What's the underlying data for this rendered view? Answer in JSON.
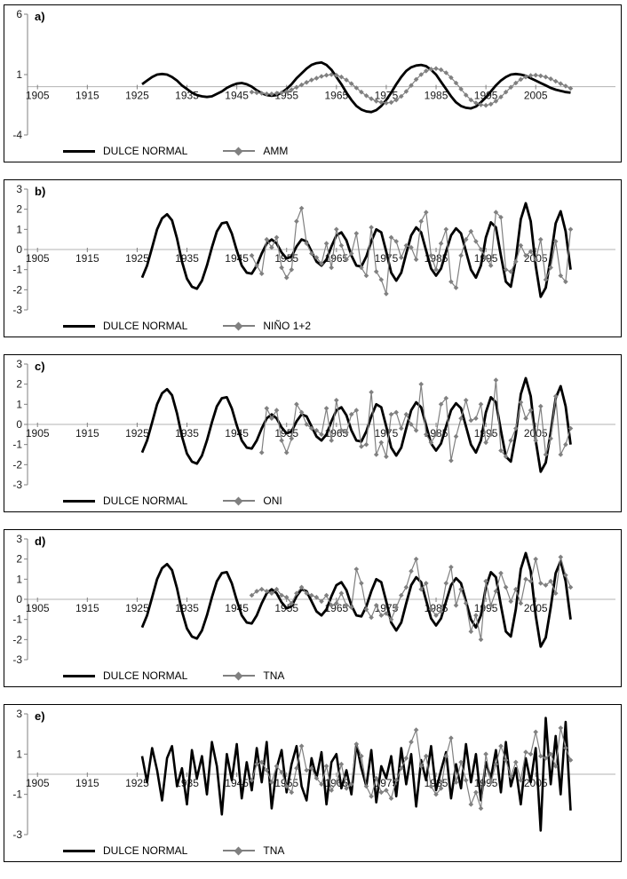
{
  "page": {
    "background": "#ffffff",
    "axis_color": "#808080",
    "zero_line_color": "#b3b3b3"
  },
  "chart_data": [
    {
      "type": "line",
      "panel_label": "a)",
      "x_domain": [
        1903,
        2021
      ],
      "x_ticks": [
        1905,
        1915,
        1925,
        1935,
        1945,
        1955,
        1965,
        1975,
        1985,
        1995,
        2005
      ],
      "y_domain": [
        -4,
        6
      ],
      "y_ticks": [
        6,
        1,
        -4
      ],
      "grid": "zero-line-only",
      "legend_position": "bottom-left-inside",
      "series": [
        {
          "name": "DULCE NORMAL",
          "color": "#000000",
          "width": 2.8,
          "marker": "none",
          "start_year": 1926,
          "values": [
            0.2,
            0.5,
            0.8,
            1.0,
            1.05,
            1.0,
            0.8,
            0.5,
            0.1,
            -0.2,
            -0.5,
            -0.7,
            -0.8,
            -0.85,
            -0.8,
            -0.6,
            -0.4,
            -0.1,
            0.1,
            0.25,
            0.3,
            0.2,
            0.0,
            -0.3,
            -0.55,
            -0.7,
            -0.75,
            -0.7,
            -0.5,
            -0.2,
            0.2,
            0.7,
            1.1,
            1.5,
            1.8,
            1.95,
            2.0,
            1.8,
            1.4,
            0.8,
            0.2,
            -0.5,
            -1.1,
            -1.6,
            -1.9,
            -2.05,
            -2.1,
            -1.95,
            -1.6,
            -1.1,
            -0.5,
            0.2,
            0.8,
            1.3,
            1.6,
            1.75,
            1.8,
            1.7,
            1.4,
            1.0,
            0.4,
            -0.2,
            -0.8,
            -1.3,
            -1.6,
            -1.75,
            -1.8,
            -1.65,
            -1.3,
            -0.9,
            -0.4,
            0.1,
            0.5,
            0.8,
            1.0,
            1.05,
            1.0,
            0.9,
            0.7,
            0.5,
            0.3,
            0.1,
            -0.1,
            -0.25,
            -0.35,
            -0.45,
            -0.5
          ]
        },
        {
          "name": "AMM",
          "color": "#808080",
          "width": 1.2,
          "marker": "diamond",
          "start_year": 1948,
          "values": [
            -0.45,
            -0.5,
            -0.55,
            -0.6,
            -0.6,
            -0.55,
            -0.5,
            -0.4,
            -0.25,
            -0.05,
            0.15,
            0.35,
            0.55,
            0.7,
            0.85,
            0.95,
            1.0,
            0.95,
            0.8,
            0.55,
            0.25,
            -0.1,
            -0.45,
            -0.75,
            -1.0,
            -1.2,
            -1.3,
            -1.35,
            -1.3,
            -1.1,
            -0.8,
            -0.4,
            0.1,
            0.6,
            1.0,
            1.3,
            1.45,
            1.5,
            1.4,
            1.15,
            0.75,
            0.3,
            -0.2,
            -0.7,
            -1.1,
            -1.35,
            -1.5,
            -1.55,
            -1.45,
            -1.2,
            -0.85,
            -0.45,
            -0.05,
            0.3,
            0.6,
            0.8,
            0.92,
            0.95,
            0.9,
            0.8,
            0.65,
            0.45,
            0.25,
            0.05,
            -0.15
          ]
        }
      ]
    },
    {
      "type": "line",
      "panel_label": "b)",
      "x_domain": [
        1903,
        2021
      ],
      "x_ticks": [
        1905,
        1915,
        1925,
        1935,
        1945,
        1955,
        1965,
        1975,
        1985,
        1995,
        2005
      ],
      "y_domain": [
        -3,
        3
      ],
      "y_ticks": [
        3,
        2,
        1,
        0,
        -1,
        -2,
        -3
      ],
      "grid": "zero-line-only",
      "legend_position": "bottom-left-inside",
      "series": [
        {
          "name": "DULCE NORMAL",
          "color": "#000000",
          "width": 2.8,
          "marker": "none",
          "start_year": 1926,
          "values": [
            -1.4,
            -0.8,
            0.1,
            1.0,
            1.55,
            1.75,
            1.45,
            0.55,
            -0.6,
            -1.45,
            -1.85,
            -1.95,
            -1.55,
            -0.8,
            0.1,
            0.9,
            1.3,
            1.35,
            0.8,
            -0.05,
            -0.8,
            -1.15,
            -1.2,
            -0.8,
            -0.2,
            0.3,
            0.5,
            0.3,
            -0.15,
            -0.45,
            -0.35,
            0.15,
            0.5,
            0.4,
            -0.1,
            -0.6,
            -0.8,
            -0.5,
            0.15,
            0.7,
            0.85,
            0.45,
            -0.3,
            -0.8,
            -0.85,
            -0.35,
            0.4,
            1.0,
            0.85,
            -0.1,
            -1.15,
            -1.55,
            -1.15,
            -0.2,
            0.7,
            1.1,
            0.85,
            -0.05,
            -0.95,
            -1.3,
            -0.95,
            -0.1,
            0.7,
            1.05,
            0.8,
            -0.1,
            -1.0,
            -1.4,
            -0.8,
            0.6,
            1.35,
            1.1,
            -0.3,
            -1.6,
            -1.85,
            -0.5,
            1.5,
            2.3,
            1.4,
            -0.8,
            -2.35,
            -1.9,
            -0.4,
            1.3,
            1.9,
            0.9,
            -1.0
          ]
        },
        {
          "name": "NIÑO 1+2",
          "color": "#808080",
          "width": 1.2,
          "marker": "diamond",
          "start_year": 1948,
          "values": [
            -0.3,
            -0.8,
            -1.2,
            0.5,
            0.1,
            0.6,
            -0.9,
            -1.4,
            -1.0,
            1.4,
            2.05,
            0.3,
            -0.2,
            -0.4,
            -0.7,
            0.3,
            -0.9,
            1.0,
            0.2,
            -0.5,
            -0.2,
            0.8,
            -0.9,
            -1.3,
            1.1,
            -1.1,
            -1.5,
            -2.2,
            0.6,
            0.4,
            -0.4,
            0.2,
            0.1,
            -0.5,
            1.4,
            1.85,
            -0.3,
            -1.0,
            0.3,
            1.0,
            -1.6,
            -1.9,
            -0.3,
            0.5,
            0.9,
            0.4,
            0.0,
            -0.4,
            -0.8,
            1.85,
            1.6,
            -1.0,
            -1.1,
            -0.6,
            0.2,
            -0.3,
            -0.1,
            -0.5,
            0.5,
            -1.5,
            -0.9,
            0.4,
            -1.3,
            -1.6,
            1.0
          ]
        }
      ]
    },
    {
      "type": "line",
      "panel_label": "c)",
      "x_domain": [
        1903,
        2021
      ],
      "x_ticks": [
        1905,
        1915,
        1925,
        1935,
        1945,
        1955,
        1965,
        1975,
        1985,
        1995,
        2005
      ],
      "y_domain": [
        -3,
        3
      ],
      "y_ticks": [
        3,
        2,
        1,
        0,
        -1,
        -2,
        -3
      ],
      "grid": "zero-line-only",
      "legend_position": "bottom-left-inside",
      "series": [
        {
          "name": "DULCE NORMAL",
          "color": "#000000",
          "width": 2.8,
          "marker": "none",
          "start_year": 1926,
          "values": [
            -1.4,
            -0.8,
            0.1,
            1.0,
            1.55,
            1.75,
            1.45,
            0.55,
            -0.6,
            -1.45,
            -1.85,
            -1.95,
            -1.55,
            -0.8,
            0.1,
            0.9,
            1.3,
            1.35,
            0.8,
            -0.05,
            -0.8,
            -1.15,
            -1.2,
            -0.8,
            -0.2,
            0.3,
            0.5,
            0.3,
            -0.15,
            -0.45,
            -0.35,
            0.15,
            0.5,
            0.4,
            -0.1,
            -0.6,
            -0.8,
            -0.5,
            0.15,
            0.7,
            0.85,
            0.45,
            -0.3,
            -0.8,
            -0.85,
            -0.35,
            0.4,
            1.0,
            0.85,
            -0.1,
            -1.15,
            -1.55,
            -1.15,
            -0.2,
            0.7,
            1.1,
            0.85,
            -0.05,
            -0.95,
            -1.3,
            -0.95,
            -0.1,
            0.7,
            1.05,
            0.8,
            -0.1,
            -1.0,
            -1.4,
            -0.8,
            0.6,
            1.35,
            1.1,
            -0.3,
            -1.6,
            -1.85,
            -0.5,
            1.5,
            2.3,
            1.4,
            -0.8,
            -2.35,
            -1.9,
            -0.4,
            1.3,
            1.9,
            0.9,
            -1.0
          ]
        },
        {
          "name": "ONI",
          "color": "#808080",
          "width": 1.2,
          "marker": "diamond",
          "start_year": 1950,
          "values": [
            -1.4,
            0.8,
            0.3,
            0.7,
            -0.8,
            -1.4,
            -0.7,
            1.0,
            0.6,
            0.0,
            -0.2,
            -0.3,
            -0.5,
            0.8,
            -0.8,
            1.2,
            -0.3,
            -0.4,
            0.5,
            0.7,
            -1.1,
            -1.0,
            1.6,
            -1.5,
            -0.9,
            -1.6,
            0.5,
            0.6,
            -0.2,
            0.5,
            0.0,
            -0.3,
            2.0,
            -0.5,
            -0.9,
            -0.5,
            1.0,
            1.3,
            -1.8,
            -0.6,
            0.3,
            1.2,
            0.2,
            0.3,
            1.0,
            -0.9,
            -0.5,
            2.2,
            -1.3,
            -1.6,
            -0.8,
            -0.2,
            1.1,
            0.3,
            0.7,
            -0.8,
            0.9,
            -1.5,
            -0.7,
            1.4,
            -1.5,
            -1.0,
            -0.2
          ]
        }
      ]
    },
    {
      "type": "line",
      "panel_label": "d)",
      "x_domain": [
        1903,
        2021
      ],
      "x_ticks": [
        1905,
        1915,
        1925,
        1935,
        1945,
        1955,
        1965,
        1975,
        1985,
        1995,
        2005
      ],
      "y_domain": [
        -3,
        3
      ],
      "y_ticks": [
        3,
        2,
        1,
        0,
        -1,
        -2,
        -3
      ],
      "grid": "zero-line-only",
      "legend_position": "bottom-left-inside",
      "series": [
        {
          "name": "DULCE NORMAL",
          "color": "#000000",
          "width": 2.8,
          "marker": "none",
          "start_year": 1926,
          "values": [
            -1.4,
            -0.8,
            0.1,
            1.0,
            1.55,
            1.75,
            1.45,
            0.55,
            -0.6,
            -1.45,
            -1.85,
            -1.95,
            -1.55,
            -0.8,
            0.1,
            0.9,
            1.3,
            1.35,
            0.8,
            -0.05,
            -0.8,
            -1.15,
            -1.2,
            -0.8,
            -0.2,
            0.3,
            0.5,
            0.3,
            -0.15,
            -0.45,
            -0.35,
            0.15,
            0.5,
            0.4,
            -0.1,
            -0.6,
            -0.8,
            -0.5,
            0.15,
            0.7,
            0.85,
            0.45,
            -0.3,
            -0.8,
            -0.85,
            -0.35,
            0.4,
            1.0,
            0.85,
            -0.1,
            -1.15,
            -1.55,
            -1.15,
            -0.2,
            0.7,
            1.1,
            0.85,
            -0.05,
            -0.95,
            -1.3,
            -0.95,
            -0.1,
            0.7,
            1.05,
            0.8,
            -0.1,
            -1.0,
            -1.4,
            -0.8,
            0.6,
            1.35,
            1.1,
            -0.3,
            -1.6,
            -1.85,
            -0.5,
            1.5,
            2.3,
            1.4,
            -0.8,
            -2.35,
            -1.9,
            -0.4,
            1.3,
            1.9,
            0.9,
            -1.0
          ]
        },
        {
          "name": "TNA",
          "color": "#808080",
          "width": 1.2,
          "marker": "diamond",
          "start_year": 1948,
          "values": [
            0.2,
            0.4,
            0.5,
            0.4,
            0.3,
            0.5,
            0.2,
            0.1,
            -0.2,
            0.3,
            0.6,
            0.3,
            0.2,
            0.1,
            -0.1,
            0.2,
            -0.3,
            -0.2,
            0.3,
            -0.3,
            -0.4,
            1.5,
            0.8,
            -0.5,
            -0.9,
            -0.3,
            -0.8,
            -0.7,
            -1.0,
            -0.4,
            0.2,
            0.6,
            1.4,
            2.0,
            0.5,
            0.8,
            -0.5,
            -0.8,
            -0.6,
            0.8,
            1.6,
            -0.3,
            0.5,
            -0.2,
            -1.6,
            -0.8,
            -2.0,
            0.9,
            -0.3,
            0.4,
            1.3,
            0.6,
            -0.1,
            0.5,
            -0.2,
            1.0,
            0.9,
            2.0,
            0.8,
            0.7,
            0.9,
            0.3,
            2.1,
            1.2,
            0.6
          ]
        }
      ]
    },
    {
      "type": "line",
      "panel_label": "e)",
      "x_domain": [
        1903,
        2021
      ],
      "x_ticks": [
        1905,
        1915,
        1925,
        1935,
        1945,
        1955,
        1965,
        1975,
        1985,
        1995,
        2005
      ],
      "y_domain": [
        -3,
        3
      ],
      "y_ticks": [
        3,
        1,
        -1,
        -3
      ],
      "grid": "zero-line-only",
      "legend_position": "bottom-left-inside",
      "series": [
        {
          "name": "DULCE NORMAL",
          "color": "#000000",
          "width": 2.6,
          "marker": "none",
          "start_year": 1926,
          "values": [
            0.9,
            -0.4,
            1.3,
            0.2,
            -1.3,
            0.8,
            1.4,
            -0.6,
            0.3,
            -1.5,
            1.2,
            -0.2,
            0.9,
            -1.0,
            1.6,
            0.4,
            -2.0,
            1.0,
            -0.3,
            1.5,
            -1.2,
            0.6,
            -0.8,
            1.3,
            -0.4,
            1.6,
            -1.7,
            0.3,
            1.2,
            -0.9,
            0.5,
            1.4,
            -0.6,
            -1.3,
            0.8,
            -0.2,
            1.1,
            -1.5,
            0.6,
            1.0,
            -0.7,
            0.2,
            -1.0,
            1.5,
            0.3,
            -0.6,
            1.2,
            -1.4,
            0.4,
            -0.2,
            0.9,
            -1.1,
            1.3,
            -0.5,
            1.0,
            -1.6,
            0.7,
            -0.3,
            1.4,
            -0.8,
            0.2,
            1.1,
            -1.2,
            0.5,
            -0.7,
            1.5,
            -0.4,
            1.0,
            -1.3,
            0.6,
            -0.2,
            1.2,
            -0.9,
            1.6,
            -0.6,
            0.3,
            -1.5,
            0.8,
            -0.4,
            1.3,
            -2.8,
            2.8,
            -0.5,
            1.9,
            -1.0,
            2.6,
            -1.8
          ]
        },
        {
          "name": "TNA",
          "color": "#808080",
          "width": 1.2,
          "marker": "diamond",
          "start_year": 1948,
          "values": [
            -0.3,
            0.5,
            0.6,
            0.2,
            -0.4,
            0.4,
            0.1,
            -0.6,
            -0.9,
            0.3,
            1.4,
            0.2,
            0.3,
            -0.2,
            -0.5,
            0.4,
            -0.8,
            -0.4,
            0.5,
            -0.7,
            -0.5,
            1.5,
            0.9,
            -0.6,
            -1.1,
            -0.2,
            -0.9,
            -0.8,
            -1.2,
            -0.3,
            0.3,
            0.8,
            1.6,
            2.2,
            0.4,
            0.9,
            -0.6,
            -1.0,
            -0.7,
            0.9,
            1.8,
            -0.4,
            0.6,
            -0.3,
            -1.5,
            -0.9,
            -1.7,
            1.0,
            -0.4,
            0.5,
            1.4,
            0.7,
            -0.1,
            0.6,
            -0.3,
            1.1,
            1.0,
            2.1,
            0.9,
            0.8,
            1.0,
            0.4,
            2.3,
            1.3,
            0.7
          ]
        }
      ]
    }
  ]
}
